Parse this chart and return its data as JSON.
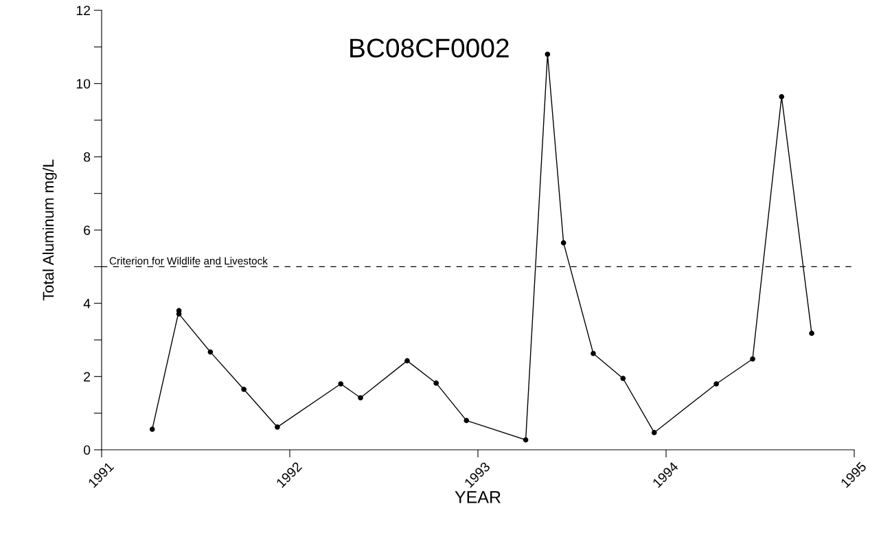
{
  "chart_data": {
    "type": "line",
    "title": "BC08CF0002",
    "xlabel": "YEAR",
    "ylabel": "Total Aluminum mg/L",
    "x": [
      1991.269,
      1991.411,
      1991.411,
      1991.578,
      1991.756,
      1991.934,
      1992.271,
      1992.376,
      1992.624,
      1992.778,
      1992.939,
      1993.254,
      1993.37,
      1993.455,
      1993.613,
      1993.771,
      1993.937,
      1994.267,
      1994.46,
      1994.614,
      1994.774
    ],
    "series": [
      {
        "color": "#000000",
        "values": [
          0.56,
          3.8,
          3.71,
          2.67,
          1.65,
          0.62,
          1.8,
          1.42,
          2.43,
          1.82,
          0.8,
          0.27,
          10.8,
          5.65,
          2.63,
          1.95,
          0.47,
          1.8,
          2.48,
          9.64,
          3.18
        ]
      }
    ],
    "xlim": [
      1991,
      1995
    ],
    "xticks": [
      1991,
      1992,
      1993,
      1994,
      1995
    ],
    "ylim": [
      0,
      12
    ],
    "yticks": [
      0,
      {
        "value": 1,
        "label": null
      },
      2,
      {
        "value": 3,
        "label": null
      },
      4,
      {
        "value": 5,
        "label": null
      },
      6,
      {
        "value": 7,
        "label": null
      },
      8,
      {
        "value": 9,
        "label": null
      },
      10,
      {
        "value": 11,
        "label": null
      },
      12
    ],
    "ref_lines": [
      {
        "axis": "y",
        "value": 5,
        "label": "Criterion for Wildlife and Livestock",
        "color": "#000000",
        "line_style": "dashed"
      }
    ],
    "grid": false,
    "legend": false,
    "marker": "circle",
    "line_style": "solid"
  }
}
